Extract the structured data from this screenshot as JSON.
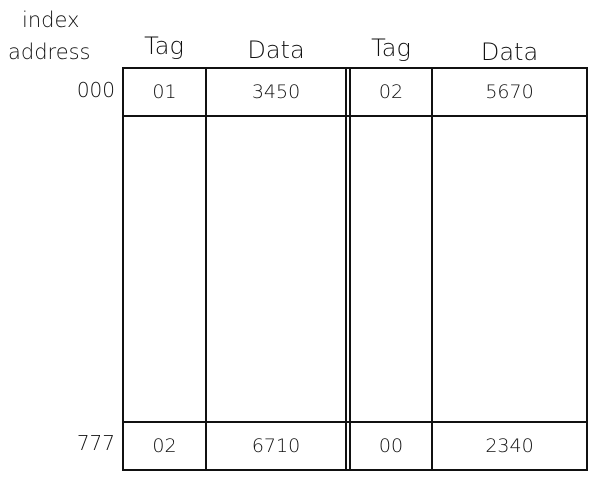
{
  "labels": {
    "index": "index",
    "address": "address"
  },
  "headers": {
    "tag_1": "Tag",
    "data_1": "Data",
    "tag_2": "Tag",
    "data_2": "Data"
  },
  "rows": [
    {
      "address": "000",
      "tag_1": "01",
      "data_1": "3450",
      "tag_2": "02",
      "data_2": "5670"
    },
    {
      "address": "777",
      "tag_1": "02",
      "data_1": "6710",
      "tag_2": "00",
      "data_2": "2340"
    }
  ]
}
